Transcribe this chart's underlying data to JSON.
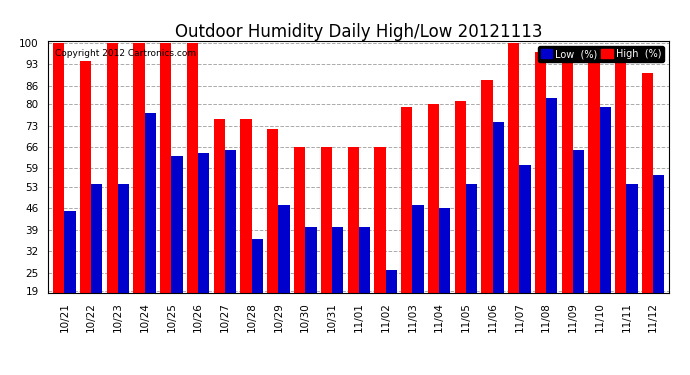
{
  "title": "Outdoor Humidity Daily High/Low 20121113",
  "copyright": "Copyright 2012 Cartronics.com",
  "ytick_labels": [
    19,
    25,
    32,
    39,
    46,
    53,
    59,
    66,
    73,
    80,
    86,
    93,
    100
  ],
  "dates": [
    "10/21",
    "10/22",
    "10/23",
    "10/24",
    "10/25",
    "10/26",
    "10/27",
    "10/28",
    "10/29",
    "10/30",
    "10/31",
    "11/01",
    "11/02",
    "11/03",
    "11/04",
    "11/05",
    "11/06",
    "11/07",
    "11/08",
    "11/09",
    "11/10",
    "11/11",
    "11/12"
  ],
  "high_values": [
    100,
    94,
    100,
    100,
    100,
    100,
    75,
    75,
    72,
    66,
    66,
    66,
    66,
    79,
    80,
    81,
    88,
    100,
    97,
    95,
    95,
    95,
    90
  ],
  "low_values": [
    45,
    54,
    54,
    77,
    63,
    64,
    65,
    36,
    47,
    40,
    40,
    40,
    26,
    47,
    46,
    54,
    74,
    60,
    82,
    65,
    79,
    54,
    57
  ],
  "high_color": "#ff0000",
  "low_color": "#0000cc",
  "bg_color": "#ffffff",
  "plot_bg_color": "#ffffff",
  "grid_color": "#aaaaaa",
  "title_fontsize": 12,
  "ymin": 19,
  "ymax": 100,
  "bar_width": 0.42
}
